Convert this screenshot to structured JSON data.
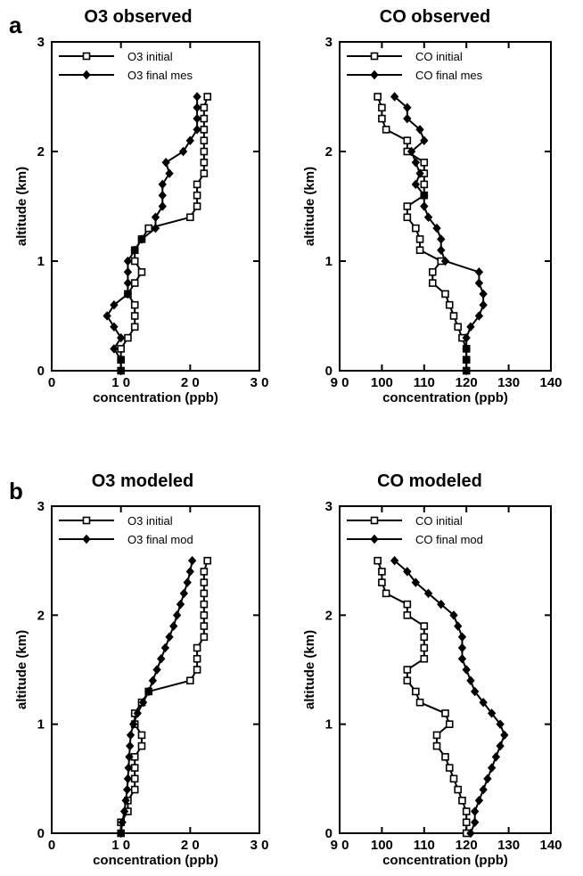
{
  "panels": [
    {
      "letter": "a"
    },
    {
      "letter": "b"
    }
  ],
  "chart_data": [
    {
      "type": "line",
      "title": "O3   observed",
      "xlabel": "concentration   (ppb)",
      "ylabel": "altitude   (km)",
      "xlim": [
        0,
        30
      ],
      "ylim": [
        0,
        3
      ],
      "xticks": [
        "0",
        "1 0",
        "2 0",
        "3 0"
      ],
      "yticks": [
        "0",
        "1",
        "2",
        "3"
      ],
      "grid": false,
      "legend_position": "top-left",
      "series": [
        {
          "name": "O3 initial",
          "marker": "open-square",
          "points": [
            [
              10,
              0
            ],
            [
              10,
              0.1
            ],
            [
              10,
              0.2
            ],
            [
              11,
              0.3
            ],
            [
              12,
              0.4
            ],
            [
              12,
              0.5
            ],
            [
              12,
              0.6
            ],
            [
              11,
              0.7
            ],
            [
              12,
              0.8
            ],
            [
              13,
              0.9
            ],
            [
              12,
              1.0
            ],
            [
              12,
              1.1
            ],
            [
              13,
              1.2
            ],
            [
              14,
              1.3
            ],
            [
              20,
              1.4
            ],
            [
              21,
              1.5
            ],
            [
              21,
              1.6
            ],
            [
              21,
              1.7
            ],
            [
              22,
              1.8
            ],
            [
              22,
              1.9
            ],
            [
              22,
              2.0
            ],
            [
              22,
              2.1
            ],
            [
              22,
              2.2
            ],
            [
              22,
              2.3
            ],
            [
              22,
              2.4
            ],
            [
              22.5,
              2.5
            ]
          ]
        },
        {
          "name": "O3 final mes",
          "marker": "filled-diamond",
          "points": [
            [
              10,
              0
            ],
            [
              10,
              0.1
            ],
            [
              9,
              0.2
            ],
            [
              10,
              0.3
            ],
            [
              9,
              0.4
            ],
            [
              8,
              0.5
            ],
            [
              9,
              0.6
            ],
            [
              11,
              0.7
            ],
            [
              11,
              0.8
            ],
            [
              11,
              0.9
            ],
            [
              11,
              1.0
            ],
            [
              12,
              1.1
            ],
            [
              13,
              1.2
            ],
            [
              15,
              1.3
            ],
            [
              15,
              1.4
            ],
            [
              16,
              1.5
            ],
            [
              16,
              1.6
            ],
            [
              16,
              1.7
            ],
            [
              17,
              1.8
            ],
            [
              16.5,
              1.9
            ],
            [
              19,
              2.0
            ],
            [
              20,
              2.1
            ],
            [
              21,
              2.2
            ],
            [
              21,
              2.3
            ],
            [
              21,
              2.4
            ],
            [
              21,
              2.5
            ]
          ]
        }
      ]
    },
    {
      "type": "line",
      "title": "CO   observed",
      "xlabel": "concentration   (ppb)",
      "ylabel": "altitude   (km)",
      "xlim": [
        90,
        140
      ],
      "ylim": [
        0,
        3
      ],
      "xticks": [
        "9 0",
        "100",
        "110",
        "120",
        "130",
        "140"
      ],
      "yticks": [
        "0",
        "1",
        "2",
        "3"
      ],
      "grid": false,
      "legend_position": "top-left",
      "series": [
        {
          "name": "CO initial",
          "marker": "open-square",
          "points": [
            [
              120,
              0
            ],
            [
              120,
              0.1
            ],
            [
              120,
              0.2
            ],
            [
              119,
              0.3
            ],
            [
              118,
              0.4
            ],
            [
              117,
              0.5
            ],
            [
              116,
              0.6
            ],
            [
              115,
              0.7
            ],
            [
              112,
              0.8
            ],
            [
              112,
              0.9
            ],
            [
              114,
              1.0
            ],
            [
              109,
              1.1
            ],
            [
              109,
              1.2
            ],
            [
              108,
              1.3
            ],
            [
              106,
              1.4
            ],
            [
              106,
              1.5
            ],
            [
              110,
              1.6
            ],
            [
              110,
              1.7
            ],
            [
              110,
              1.8
            ],
            [
              110,
              1.9
            ],
            [
              106,
              2.0
            ],
            [
              106,
              2.1
            ],
            [
              101,
              2.2
            ],
            [
              100,
              2.3
            ],
            [
              100,
              2.4
            ],
            [
              99,
              2.5
            ]
          ]
        },
        {
          "name": "CO final mes",
          "marker": "filled-diamond",
          "points": [
            [
              120,
              0
            ],
            [
              120,
              0.1
            ],
            [
              120,
              0.2
            ],
            [
              120,
              0.3
            ],
            [
              121,
              0.4
            ],
            [
              123,
              0.5
            ],
            [
              124,
              0.6
            ],
            [
              124,
              0.7
            ],
            [
              123,
              0.8
            ],
            [
              123,
              0.9
            ],
            [
              115,
              1.0
            ],
            [
              114,
              1.1
            ],
            [
              114,
              1.2
            ],
            [
              113,
              1.3
            ],
            [
              111,
              1.4
            ],
            [
              110,
              1.5
            ],
            [
              110,
              1.6
            ],
            [
              108,
              1.7
            ],
            [
              109,
              1.8
            ],
            [
              108,
              1.9
            ],
            [
              107,
              2.0
            ],
            [
              110,
              2.1
            ],
            [
              109,
              2.2
            ],
            [
              106,
              2.3
            ],
            [
              106,
              2.4
            ],
            [
              103,
              2.5
            ]
          ]
        }
      ]
    },
    {
      "type": "line",
      "title": "O3   modeled",
      "xlabel": "concentration  (ppb)",
      "ylabel": "altitude   (km)",
      "xlim": [
        0,
        30
      ],
      "ylim": [
        0,
        3
      ],
      "xticks": [
        "0",
        "1 0",
        "2 0",
        "3 0"
      ],
      "yticks": [
        "0",
        "1",
        "2",
        "3"
      ],
      "grid": false,
      "legend_position": "top-left",
      "series": [
        {
          "name": "O3 initial",
          "marker": "open-square",
          "points": [
            [
              10,
              0
            ],
            [
              10,
              0.1
            ],
            [
              11,
              0.2
            ],
            [
              11,
              0.3
            ],
            [
              12,
              0.4
            ],
            [
              12,
              0.5
            ],
            [
              12,
              0.6
            ],
            [
              12,
              0.7
            ],
            [
              13,
              0.8
            ],
            [
              13,
              0.9
            ],
            [
              12,
              1.0
            ],
            [
              12,
              1.1
            ],
            [
              13,
              1.2
            ],
            [
              14,
              1.3
            ],
            [
              20,
              1.4
            ],
            [
              21,
              1.5
            ],
            [
              21,
              1.6
            ],
            [
              21,
              1.7
            ],
            [
              22,
              1.8
            ],
            [
              22,
              1.9
            ],
            [
              22,
              2.0
            ],
            [
              22,
              2.1
            ],
            [
              22,
              2.2
            ],
            [
              22,
              2.3
            ],
            [
              22,
              2.4
            ],
            [
              22.5,
              2.5
            ]
          ]
        },
        {
          "name": "O3 final mod",
          "marker": "filled-diamond",
          "points": [
            [
              10,
              0
            ],
            [
              10.2,
              0.1
            ],
            [
              10.5,
              0.2
            ],
            [
              10.7,
              0.3
            ],
            [
              10.9,
              0.4
            ],
            [
              11,
              0.5
            ],
            [
              11.1,
              0.6
            ],
            [
              11.2,
              0.7
            ],
            [
              11.3,
              0.8
            ],
            [
              11.4,
              0.9
            ],
            [
              11.8,
              1.0
            ],
            [
              12.4,
              1.1
            ],
            [
              13.2,
              1.2
            ],
            [
              14,
              1.3
            ],
            [
              14.6,
              1.4
            ],
            [
              15.2,
              1.5
            ],
            [
              15.8,
              1.6
            ],
            [
              16.4,
              1.7
            ],
            [
              17,
              1.8
            ],
            [
              17.6,
              1.9
            ],
            [
              18.1,
              2.0
            ],
            [
              18.6,
              2.1
            ],
            [
              19.1,
              2.2
            ],
            [
              19.6,
              2.3
            ],
            [
              20,
              2.4
            ],
            [
              20.3,
              2.5
            ]
          ]
        }
      ]
    },
    {
      "type": "line",
      "title": "CO   modeled",
      "xlabel": "concentration   (ppb)",
      "ylabel": "altitude   (km)",
      "xlim": [
        90,
        140
      ],
      "ylim": [
        0,
        3
      ],
      "xticks": [
        "9 0",
        "100",
        "110",
        "120",
        "130",
        "140"
      ],
      "yticks": [
        "0",
        "1",
        "2",
        "3"
      ],
      "grid": false,
      "legend_position": "top-left",
      "series": [
        {
          "name": "CO initial",
          "marker": "open-square",
          "points": [
            [
              120,
              0
            ],
            [
              120,
              0.1
            ],
            [
              120,
              0.2
            ],
            [
              119,
              0.3
            ],
            [
              118,
              0.4
            ],
            [
              117,
              0.5
            ],
            [
              116,
              0.6
            ],
            [
              115,
              0.7
            ],
            [
              113,
              0.8
            ],
            [
              113,
              0.9
            ],
            [
              116,
              1.0
            ],
            [
              115,
              1.1
            ],
            [
              109,
              1.2
            ],
            [
              108,
              1.3
            ],
            [
              106,
              1.4
            ],
            [
              106,
              1.5
            ],
            [
              110,
              1.6
            ],
            [
              110,
              1.7
            ],
            [
              110,
              1.8
            ],
            [
              110,
              1.9
            ],
            [
              106,
              2.0
            ],
            [
              106,
              2.1
            ],
            [
              101,
              2.2
            ],
            [
              100,
              2.3
            ],
            [
              100,
              2.4
            ],
            [
              99,
              2.5
            ]
          ]
        },
        {
          "name": "CO final mod",
          "marker": "filled-diamond",
          "points": [
            [
              121,
              0
            ],
            [
              122,
              0.1
            ],
            [
              122,
              0.2
            ],
            [
              123,
              0.3
            ],
            [
              124,
              0.4
            ],
            [
              125,
              0.5
            ],
            [
              126,
              0.6
            ],
            [
              127,
              0.7
            ],
            [
              128,
              0.8
            ],
            [
              129,
              0.9
            ],
            [
              128,
              1.0
            ],
            [
              126,
              1.1
            ],
            [
              124,
              1.2
            ],
            [
              122,
              1.3
            ],
            [
              121,
              1.4
            ],
            [
              120,
              1.5
            ],
            [
              119,
              1.6
            ],
            [
              119,
              1.7
            ],
            [
              119,
              1.8
            ],
            [
              118,
              1.9
            ],
            [
              117,
              2.0
            ],
            [
              114,
              2.1
            ],
            [
              111,
              2.2
            ],
            [
              108,
              2.3
            ],
            [
              106,
              2.4
            ],
            [
              103,
              2.5
            ]
          ]
        }
      ]
    }
  ]
}
